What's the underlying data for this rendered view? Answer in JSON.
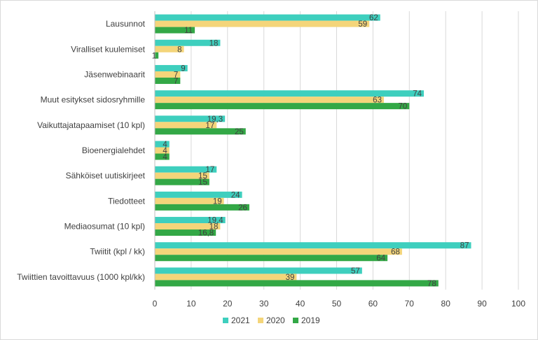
{
  "chart_data": {
    "type": "bar",
    "orientation": "horizontal",
    "categories": [
      "Lausunnot",
      "Viralliset kuulemiset",
      "Jäsenwebinaarit",
      "Muut esitykset sidosryhmille",
      "Vaikuttajatapaamiset (10 kpl)",
      "Bioenergialehdet",
      "Sähköiset uutiskirjeet",
      "Tiedotteet",
      "Mediaosumat (10 kpl)",
      "Twiitit (kpl / kk)",
      "Twiittien tavoittavuus (1000 kpl/kk)"
    ],
    "series": [
      {
        "name": "2021",
        "color": "#3ecfbe",
        "values": [
          62,
          18,
          9,
          74,
          19.3,
          4,
          17,
          24,
          19.4,
          87,
          57
        ],
        "labels": [
          "62",
          "18",
          "9",
          "74",
          "19,3",
          "4",
          "17",
          "24",
          "19,4",
          "87",
          "57"
        ]
      },
      {
        "name": "2020",
        "color": "#f4d57a",
        "values": [
          59,
          8,
          7,
          63,
          17,
          4,
          15,
          19,
          18,
          68,
          39
        ],
        "labels": [
          "59",
          "8",
          "7",
          "63",
          "17",
          "4",
          "15",
          "19",
          "18",
          "68",
          "39"
        ]
      },
      {
        "name": "2019",
        "color": "#33a846",
        "values": [
          11,
          1,
          7,
          70,
          25,
          4,
          15,
          26,
          16.8,
          64,
          78
        ],
        "labels": [
          "11",
          "1",
          "7",
          "70",
          "25",
          "4",
          "15",
          "26",
          "16,8",
          "64",
          "78"
        ]
      }
    ],
    "xlim": [
      0,
      100
    ],
    "xticks": [
      0,
      10,
      20,
      30,
      40,
      50,
      60,
      70,
      80,
      90,
      100
    ],
    "grid": true,
    "legend_position": "bottom",
    "title": "",
    "xlabel": "",
    "ylabel": ""
  }
}
